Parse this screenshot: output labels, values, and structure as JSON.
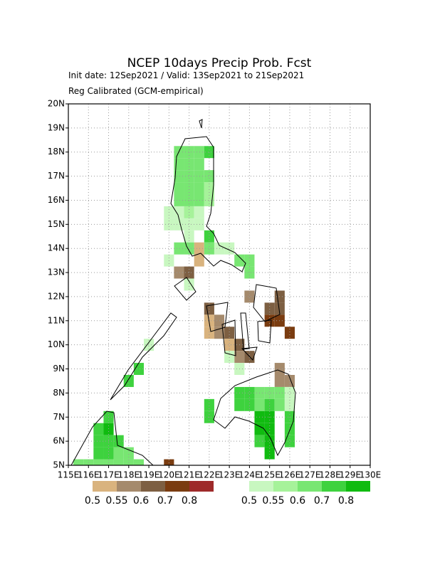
{
  "chart_data": {
    "type": "grid-map",
    "title": "NCEP 10days Precip Prob. Fcst",
    "subtitle": [
      "Init date: 12Sep2021 / Valid: 13Sep2021 to 21Sep2021",
      "Reg Calibrated (GCM-empirical)"
    ],
    "xlim": [
      115,
      130
    ],
    "ylim": [
      5,
      20
    ],
    "xticks": [
      {
        "value": 115,
        "label": "115E"
      },
      {
        "value": 116,
        "label": "116E"
      },
      {
        "value": 117,
        "label": "117E"
      },
      {
        "value": 118,
        "label": "118E"
      },
      {
        "value": 119,
        "label": "119E"
      },
      {
        "value": 120,
        "label": "120E"
      },
      {
        "value": 121,
        "label": "121E"
      },
      {
        "value": 122,
        "label": "122E"
      },
      {
        "value": 123,
        "label": "123E"
      },
      {
        "value": 124,
        "label": "124E"
      },
      {
        "value": 125,
        "label": "125E"
      },
      {
        "value": 126,
        "label": "126E"
      },
      {
        "value": 127,
        "label": "127E"
      },
      {
        "value": 128,
        "label": "128E"
      },
      {
        "value": 129,
        "label": "129E"
      },
      {
        "value": 130,
        "label": "130E"
      }
    ],
    "yticks": [
      {
        "value": 5,
        "label": "5N"
      },
      {
        "value": 6,
        "label": "6N"
      },
      {
        "value": 7,
        "label": "7N"
      },
      {
        "value": 8,
        "label": "8N"
      },
      {
        "value": 9,
        "label": "9N"
      },
      {
        "value": 10,
        "label": "10N"
      },
      {
        "value": 11,
        "label": "11N"
      },
      {
        "value": 12,
        "label": "12N"
      },
      {
        "value": 13,
        "label": "13N"
      },
      {
        "value": 14,
        "label": "14N"
      },
      {
        "value": 15,
        "label": "15N"
      },
      {
        "value": 16,
        "label": "16N"
      },
      {
        "value": 17,
        "label": "17N"
      },
      {
        "value": 18,
        "label": "18N"
      },
      {
        "value": 19,
        "label": "19N"
      },
      {
        "value": 20,
        "label": "20N"
      }
    ],
    "grid": true,
    "below": {
      "levels": [
        0.5,
        0.55,
        0.6,
        0.7,
        0.8
      ],
      "colors": [
        "#d9b37e",
        "#a58a6c",
        "#7d5f42",
        "#7a3c10",
        "#9e2a2a"
      ],
      "cells": [
        [
          120.5,
          13,
          0.55
        ],
        [
          121,
          13,
          0.6
        ],
        [
          121.5,
          14,
          0.5
        ],
        [
          121.5,
          13.5,
          0.5
        ],
        [
          124,
          12,
          0.55
        ],
        [
          125.5,
          12,
          0.6
        ],
        [
          122,
          11.5,
          0.6
        ],
        [
          125,
          11.5,
          0.6
        ],
        [
          125.5,
          11.5,
          0.6
        ],
        [
          122,
          11,
          0.5
        ],
        [
          122.5,
          11,
          0.55
        ],
        [
          125,
          11,
          0.7
        ],
        [
          125.5,
          11,
          0.7
        ],
        [
          122,
          10.5,
          0.5
        ],
        [
          122.5,
          10.5,
          0.55
        ],
        [
          123,
          10.5,
          0.6
        ],
        [
          126,
          10.5,
          0.7
        ],
        [
          123,
          10,
          0.5
        ],
        [
          123.5,
          10,
          0.6
        ],
        [
          123.5,
          9.5,
          0.55
        ],
        [
          124,
          9.5,
          0.6
        ],
        [
          125.5,
          8.5,
          0.55
        ],
        [
          126,
          8.5,
          0.55
        ],
        [
          125.5,
          9,
          0.55
        ],
        [
          120,
          5,
          0.7
        ]
      ]
    },
    "above": {
      "levels": [
        0.5,
        0.55,
        0.6,
        0.7,
        0.8
      ],
      "colors": [
        "#c8f7c0",
        "#a6f29a",
        "#78e672",
        "#3ed23e",
        "#10bb10"
      ],
      "cells": [
        [
          120.5,
          18,
          0.6
        ],
        [
          121,
          18,
          0.6
        ],
        [
          121.5,
          18,
          0.6
        ],
        [
          122,
          18,
          0.7
        ],
        [
          120.5,
          17.5,
          0.6
        ],
        [
          121,
          17.5,
          0.6
        ],
        [
          121.5,
          17.5,
          0.6
        ],
        [
          120.5,
          17,
          0.6
        ],
        [
          121,
          17,
          0.6
        ],
        [
          121.5,
          17,
          0.6
        ],
        [
          122,
          17,
          0.6
        ],
        [
          120.5,
          16.5,
          0.6
        ],
        [
          121,
          16.5,
          0.6
        ],
        [
          121.5,
          16.5,
          0.6
        ],
        [
          122,
          16.5,
          0.55
        ],
        [
          120.5,
          16,
          0.6
        ],
        [
          121,
          16,
          0.6
        ],
        [
          121.5,
          16,
          0.6
        ],
        [
          122,
          16,
          0.55
        ],
        [
          120,
          15.5,
          0.5
        ],
        [
          120.5,
          15.5,
          0.5
        ],
        [
          121,
          15.5,
          0.55
        ],
        [
          121.5,
          15.5,
          0.5
        ],
        [
          120,
          15,
          0.5
        ],
        [
          120.5,
          15,
          0.5
        ],
        [
          121,
          15,
          0.5
        ],
        [
          121.5,
          15,
          0.5
        ],
        [
          121,
          14.5,
          0.5
        ],
        [
          122,
          14.5,
          0.7
        ],
        [
          120.5,
          14,
          0.6
        ],
        [
          121,
          14,
          0.6
        ],
        [
          122,
          14,
          0.6
        ],
        [
          122.5,
          14,
          0.5
        ],
        [
          123,
          14,
          0.5
        ],
        [
          120,
          13.5,
          0.5
        ],
        [
          123.5,
          13.5,
          0.6
        ],
        [
          124,
          13.5,
          0.6
        ],
        [
          124,
          13,
          0.6
        ],
        [
          121,
          12.5,
          0.5
        ],
        [
          123.5,
          8,
          0.7
        ],
        [
          124,
          8,
          0.7
        ],
        [
          124.5,
          8,
          0.6
        ],
        [
          125,
          8,
          0.6
        ],
        [
          125.5,
          8,
          0.6
        ],
        [
          126,
          8,
          0.5
        ],
        [
          122,
          7.5,
          0.7
        ],
        [
          123.5,
          7.5,
          0.7
        ],
        [
          124,
          7.5,
          0.7
        ],
        [
          124.5,
          7.5,
          0.6
        ],
        [
          125,
          7.5,
          0.7
        ],
        [
          125.5,
          7.5,
          0.6
        ],
        [
          126,
          7.5,
          0.5
        ],
        [
          122,
          7,
          0.7
        ],
        [
          124.5,
          7,
          0.8
        ],
        [
          125,
          7,
          0.8
        ],
        [
          126,
          7,
          0.7
        ],
        [
          124.5,
          6.5,
          0.8
        ],
        [
          125,
          6.5,
          0.8
        ],
        [
          126,
          6.5,
          0.7
        ],
        [
          124.5,
          6,
          0.7
        ],
        [
          125,
          6,
          0.8
        ],
        [
          125,
          5.5,
          0.8
        ],
        [
          117,
          7,
          0.7
        ],
        [
          116.5,
          6.5,
          0.7
        ],
        [
          117,
          6.5,
          0.8
        ],
        [
          116.5,
          6,
          0.7
        ],
        [
          117,
          6,
          0.7
        ],
        [
          117.5,
          6,
          0.7
        ],
        [
          116.5,
          5.5,
          0.7
        ],
        [
          117,
          5.5,
          0.7
        ],
        [
          117.5,
          5.5,
          0.6
        ],
        [
          118,
          5.5,
          0.6
        ],
        [
          115.5,
          5,
          0.6
        ],
        [
          116,
          5,
          0.6
        ],
        [
          116.5,
          5,
          0.6
        ],
        [
          117,
          5,
          0.6
        ],
        [
          117.5,
          5,
          0.6
        ],
        [
          118,
          5,
          0.6
        ],
        [
          118.5,
          5,
          0.6
        ],
        [
          118.5,
          9,
          0.7
        ],
        [
          118,
          8.5,
          0.7
        ],
        [
          119,
          10,
          0.5
        ],
        [
          123,
          9.5,
          0.5
        ],
        [
          123.5,
          9,
          0.5
        ],
        [
          126,
          6,
          0.7
        ]
      ]
    }
  }
}
